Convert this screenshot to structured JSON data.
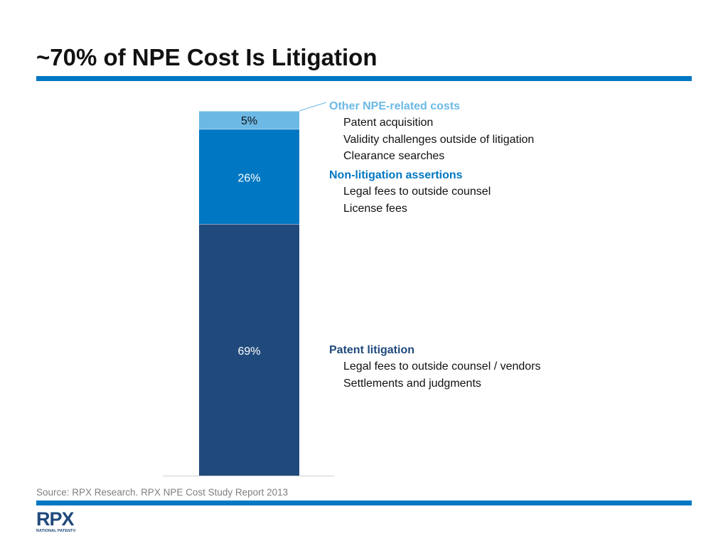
{
  "title": "~70% of NPE Cost Is Litigation",
  "chart_data": {
    "type": "bar",
    "stacked": true,
    "categories": [
      ""
    ],
    "series": [
      {
        "name": "Patent litigation",
        "values": [
          69
        ],
        "label": "69%",
        "color": "#204a7c",
        "label_color": "#ffffff"
      },
      {
        "name": "Non-litigation assertions",
        "values": [
          26
        ],
        "label": "26%",
        "color": "#0077c2",
        "label_color": "#ffffff"
      },
      {
        "name": "Other NPE-related costs",
        "values": [
          5
        ],
        "label": "5%",
        "color": "#6cb9e6",
        "label_color": "#111111"
      }
    ],
    "ylim": [
      0,
      100
    ],
    "grid": false,
    "legend": "right"
  },
  "groups": {
    "other": {
      "label": "Other NPE-related costs",
      "color": "#6cb9e6",
      "items": [
        "Patent acquisition",
        "Validity challenges outside of litigation",
        "Clearance searches"
      ]
    },
    "nonlit": {
      "label": "Non-litigation assertions",
      "color": "#0077c2",
      "items": [
        "Legal fees to outside counsel",
        "License fees"
      ]
    },
    "lit": {
      "label": "Patent litigation",
      "color": "#204a7c",
      "items": [
        "Legal fees to outside counsel / vendors",
        "Settlements and judgments"
      ]
    }
  },
  "source": "Source: RPX Research.  RPX NPE Cost Study Report 2013",
  "logo": {
    "name": "RPX",
    "tagline": "RATIONAL PATENT®"
  },
  "colors": {
    "rule": "#0077c2",
    "logo": "#204a7c"
  }
}
